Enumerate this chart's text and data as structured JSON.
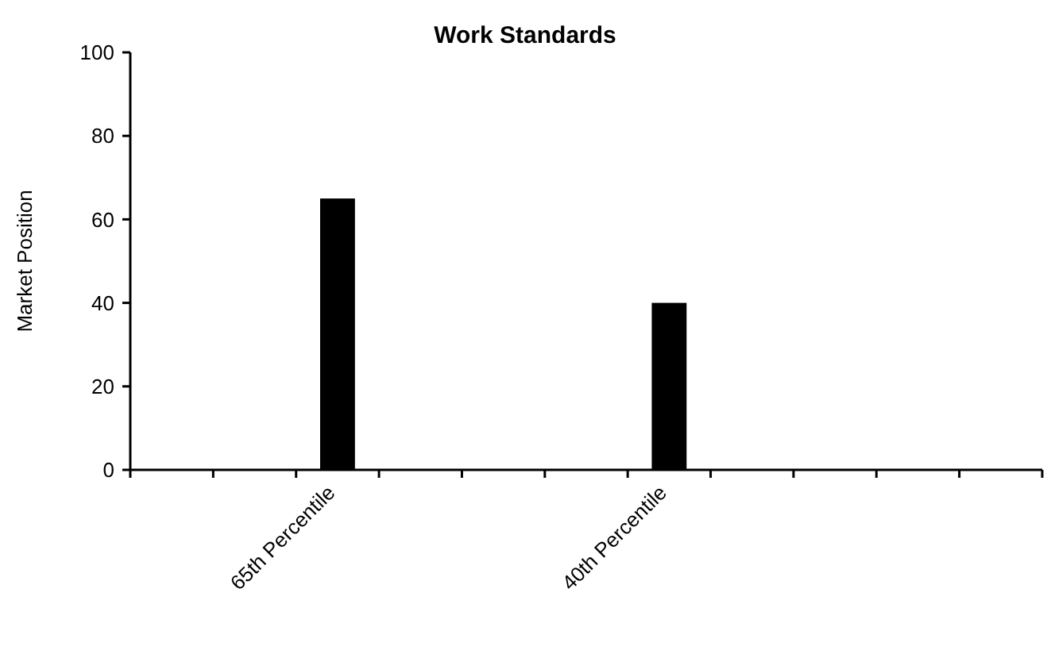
{
  "chart_data": {
    "type": "bar",
    "title": "Work Standards",
    "ylabel": "Market Position",
    "categories": [
      null,
      null,
      "65th Percentile",
      null,
      null,
      null,
      "40th Percentile",
      null,
      null,
      null,
      null
    ],
    "values": [
      null,
      null,
      65,
      null,
      null,
      null,
      40,
      null,
      null,
      null,
      null
    ],
    "color": "#000000",
    "ylim": [
      0,
      100
    ],
    "yticks": [
      0,
      20,
      40,
      60,
      80,
      100
    ],
    "grid": false
  }
}
